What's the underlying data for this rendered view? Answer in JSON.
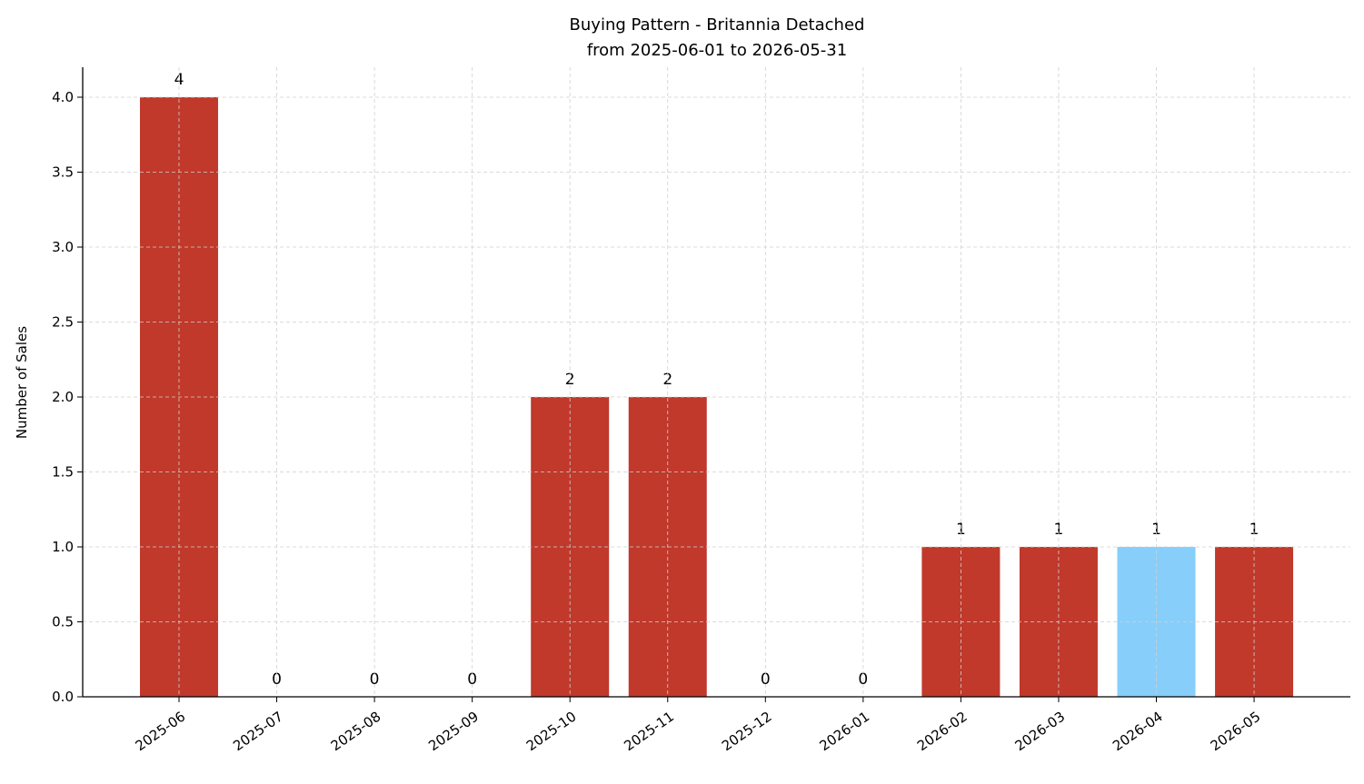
{
  "chart_data": {
    "type": "bar",
    "title": "Buying Pattern - Britannia Detached",
    "subtitle": "from 2025-06-01 to 2026-05-31",
    "y_label": "Number of Sales",
    "categories": [
      "2025-06",
      "2025-07",
      "2025-08",
      "2025-09",
      "2025-10",
      "2025-11",
      "2025-12",
      "2026-01",
      "2026-02",
      "2026-03",
      "2026-04",
      "2026-05"
    ],
    "values": [
      4,
      0,
      0,
      0,
      2,
      2,
      0,
      0,
      1,
      1,
      1,
      1
    ],
    "colors": [
      "#c0392b",
      "#c0392b",
      "#c0392b",
      "#c0392b",
      "#c0392b",
      "#c0392b",
      "#c0392b",
      "#c0392b",
      "#c0392b",
      "#c0392b",
      "#87cefa",
      "#c0392b"
    ],
    "ylim": [
      0,
      4.2
    ],
    "yticks": [
      {
        "value": 0,
        "label": "0.0"
      },
      {
        "value": 0.5,
        "label": "0.5"
      },
      {
        "value": 1,
        "label": "1.0"
      },
      {
        "value": 1.5,
        "label": "1.5"
      },
      {
        "value": 2,
        "label": "2.0"
      },
      {
        "value": 2.5,
        "label": "2.5"
      },
      {
        "value": 3,
        "label": "3.0"
      },
      {
        "value": 3.5,
        "label": "3.5"
      },
      {
        "value": 4,
        "label": "4.0"
      }
    ],
    "grid": true
  }
}
